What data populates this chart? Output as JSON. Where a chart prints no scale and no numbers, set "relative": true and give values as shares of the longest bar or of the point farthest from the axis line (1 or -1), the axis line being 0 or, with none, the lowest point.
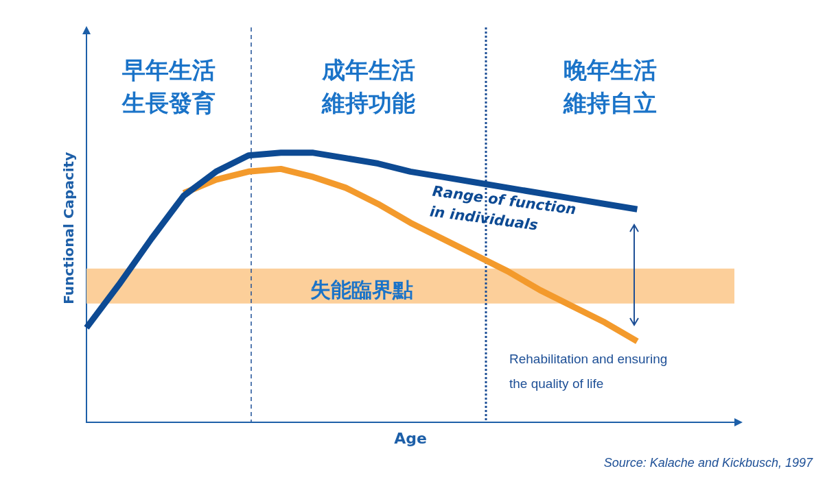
{
  "chart_data": {
    "type": "line",
    "relative": true,
    "xlabel": "Age",
    "ylabel": "Functional Capacity",
    "grid": false,
    "legend": false,
    "marker": "none",
    "line_style": "solid",
    "categories": [
      null,
      null,
      null,
      null,
      null,
      null,
      null,
      null,
      null,
      null,
      null,
      null,
      null,
      null,
      null,
      null,
      null,
      null,
      null,
      null,
      null
    ],
    "series": [
      {
        "color": "#0d4a93",
        "values": [
          0.35,
          0.51,
          0.68,
          0.84,
          0.93,
          0.99,
          1,
          1,
          0.98,
          0.96,
          0.93,
          0.91,
          0.89,
          0.87,
          0.85,
          0.83,
          0.81,
          0.79,
          null,
          null,
          null
        ]
      },
      {
        "color": "#f39a2c",
        "values": [
          null,
          null,
          null,
          0.85,
          0.9,
          0.93,
          0.94,
          0.91,
          0.87,
          0.81,
          0.74,
          0.68,
          0.62,
          0.56,
          0.49,
          0.43,
          0.37,
          0.3,
          null,
          null,
          null
        ]
      }
    ],
    "bands": [
      {
        "axis": "y",
        "from": 0.44,
        "to": 0.57,
        "label": "失能臨界點",
        "color": "#fccf9a"
      }
    ],
    "annotations": [
      "早年生活生長發育",
      "成年生活維持功能",
      "晚年生活維持自立",
      "Range of function\nin individuals",
      "Rehabilitation and ensuring\nthe quality of life",
      "Source: Kalache and Kickbusch, 1997"
    ]
  }
}
